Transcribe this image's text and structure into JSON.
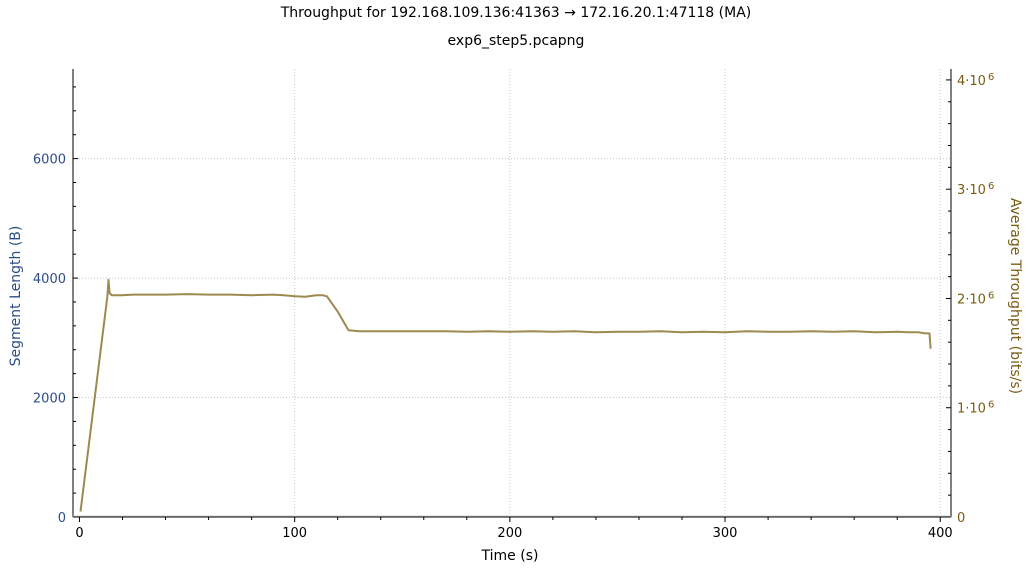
{
  "chart_data": {
    "type": "line",
    "title": "Throughput for 192.168.109.136:41363 → 172.16.20.1:47118 (MA)",
    "subtitle": "exp6_step5.pcapng",
    "xlabel": "Time (s)",
    "ylabel_left": "Segment Length (B)",
    "ylabel_right": "Average Throughput (bits/s)",
    "xlim": [
      -3,
      405
    ],
    "ylim_left": [
      0,
      7500
    ],
    "ylim_right": [
      0,
      4100000
    ],
    "grid": true,
    "x_ticks": [
      0,
      100,
      200,
      300,
      400
    ],
    "x_tick_labels": [
      "0",
      "100",
      "200",
      "300",
      "400"
    ],
    "y_left_ticks": [
      0,
      2000,
      4000,
      6000
    ],
    "y_left_tick_labels": [
      "0",
      "2000",
      "4000",
      "6000"
    ],
    "y_right_ticks": [
      0,
      1000000,
      2000000,
      3000000,
      4000000
    ],
    "y_right_tick_labels": [
      {
        "base": "0",
        "exp": ""
      },
      {
        "base": "1·10",
        "exp": "6"
      },
      {
        "base": "2·10",
        "exp": "6"
      },
      {
        "base": "3·10",
        "exp": "6"
      },
      {
        "base": "4·10",
        "exp": "6"
      }
    ],
    "colors": {
      "left_axis": "#2c4d8a",
      "right_axis": "#7a5c12",
      "line": "#9c8a4f",
      "grid": "#c8c8c8"
    },
    "series": [
      {
        "axis": "right",
        "x": [
          0.5,
          13,
          13.5,
          14,
          15,
          20,
          25,
          30,
          40,
          50,
          60,
          70,
          80,
          90,
          95,
          100,
          105,
          110,
          113,
          115,
          120,
          125,
          130,
          140,
          150,
          160,
          170,
          180,
          190,
          200,
          210,
          220,
          230,
          240,
          250,
          260,
          270,
          280,
          290,
          300,
          310,
          320,
          330,
          340,
          350,
          360,
          370,
          380,
          385,
          390,
          393,
          395,
          395.5
        ],
        "y": [
          50000,
          2020000,
          2170000,
          2050000,
          2030000,
          2030000,
          2035000,
          2035000,
          2035000,
          2040000,
          2035000,
          2035000,
          2030000,
          2035000,
          2030000,
          2020000,
          2015000,
          2030000,
          2030000,
          2020000,
          1880000,
          1710000,
          1700000,
          1700000,
          1700000,
          1700000,
          1700000,
          1695000,
          1700000,
          1695000,
          1700000,
          1695000,
          1700000,
          1690000,
          1695000,
          1695000,
          1700000,
          1690000,
          1695000,
          1690000,
          1700000,
          1695000,
          1695000,
          1700000,
          1695000,
          1700000,
          1690000,
          1695000,
          1690000,
          1690000,
          1680000,
          1680000,
          1540000
        ]
      }
    ]
  }
}
